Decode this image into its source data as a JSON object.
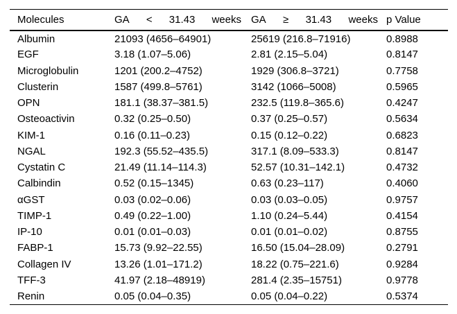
{
  "table": {
    "header": {
      "molecules": "Molecules",
      "ga_lt_parts": [
        "GA",
        "<",
        "31.43",
        "weeks"
      ],
      "ga_ge_parts": [
        "GA",
        "≥",
        "31.43",
        "weeks"
      ],
      "p_value": "p Value"
    },
    "rows": [
      {
        "molecule": "Albumin",
        "ga_lt": "21093 (4656–64901)",
        "ga_ge": "25619 (216.8–71916)",
        "p_value": "0.8988"
      },
      {
        "molecule": "EGF",
        "ga_lt": "3.18 (1.07–5.06)",
        "ga_ge": "2.81 (2.15–5.04)",
        "p_value": "0.8147"
      },
      {
        "molecule": "Microglobulin",
        "ga_lt": "1201 (200.2–4752)",
        "ga_ge": "1929 (306.8–3721)",
        "p_value": "0.7758"
      },
      {
        "molecule": "Clusterin",
        "ga_lt": "1587 (499.8–5761)",
        "ga_ge": "3142 (1066–5008)",
        "p_value": "0.5965"
      },
      {
        "molecule": "OPN",
        "ga_lt": "181.1 (38.37–381.5)",
        "ga_ge": "232.5 (119.8–365.6)",
        "p_value": "0.4247"
      },
      {
        "molecule": "Osteoactivin",
        "ga_lt": "0.32 (0.25–0.50)",
        "ga_ge": "0.37 (0.25–0.57)",
        "p_value": "0.5634"
      },
      {
        "molecule": "KIM-1",
        "ga_lt": "0.16 (0.11–0.23)",
        "ga_ge": "0.15 (0.12–0.22)",
        "p_value": "0.6823"
      },
      {
        "molecule": "NGAL",
        "ga_lt": "192.3 (55.52–435.5)",
        "ga_ge": "317.1 (8.09–533.3)",
        "p_value": "0.8147"
      },
      {
        "molecule": "Cystatin C",
        "ga_lt": "21.49 (11.14–114.3)",
        "ga_ge": "52.57 (10.31–142.1)",
        "p_value": "0.4732"
      },
      {
        "molecule": "Calbindin",
        "ga_lt": "0.52 (0.15–1345)",
        "ga_ge": "0.63 (0.23–117)",
        "p_value": "0.4060"
      },
      {
        "molecule": "αGST",
        "ga_lt": "0.03 (0.02–0.06)",
        "ga_ge": "0.03 (0.03–0.05)",
        "p_value": "0.9757"
      },
      {
        "molecule": "TIMP-1",
        "ga_lt": "0.49 (0.22–1.00)",
        "ga_ge": "1.10 (0.24–5.44)",
        "p_value": "0.4154"
      },
      {
        "molecule": "IP-10",
        "ga_lt": "0.01 (0.01–0.03)",
        "ga_ge": "0.01 (0.01–0.02)",
        "p_value": "0.8755"
      },
      {
        "molecule": "FABP-1",
        "ga_lt": "15.73 (9.92–22.55)",
        "ga_ge": "16.50 (15.04–28.09)",
        "p_value": "0.2791"
      },
      {
        "molecule": "Collagen IV",
        "ga_lt": "13.26 (1.01–171.2)",
        "ga_ge": "18.22 (0.75–221.6)",
        "p_value": "0.9284"
      },
      {
        "molecule": "TFF-3",
        "ga_lt": "41.97 (2.18–48919)",
        "ga_ge": "281.4 (2.35–15751)",
        "p_value": "0.9778"
      },
      {
        "molecule": "Renin",
        "ga_lt": "0.05 (0.04–0.35)",
        "ga_ge": "0.05 (0.04–0.22)",
        "p_value": "0.5374"
      }
    ]
  }
}
